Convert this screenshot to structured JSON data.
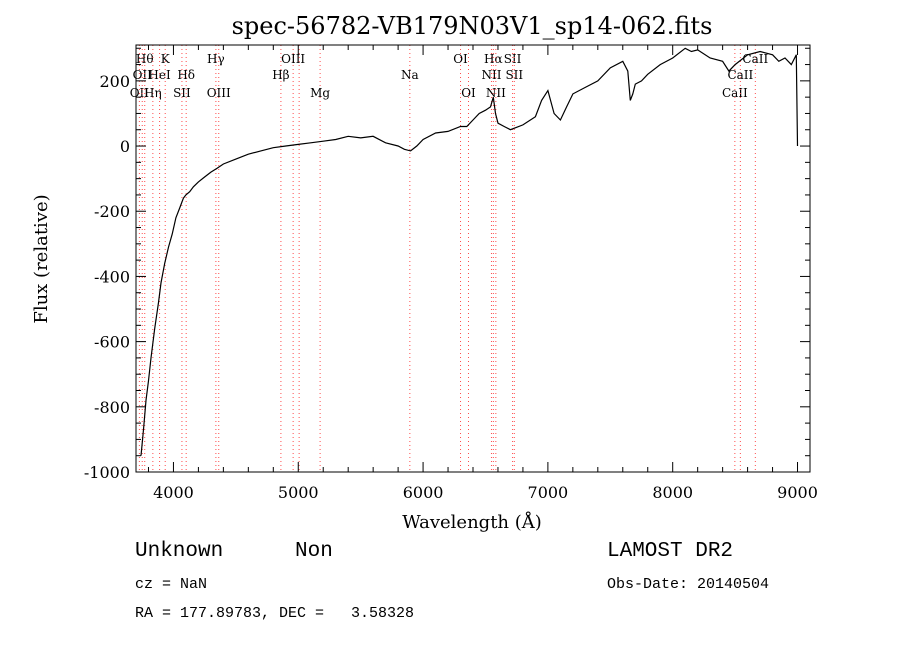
{
  "chart_data": {
    "type": "line",
    "title": "spec-56782-VB179N03V1_sp14-062.fits",
    "xlabel": "Wavelength (Å)",
    "ylabel": "Flux (relative)",
    "xlim": [
      3700,
      9100
    ],
    "ylim": [
      -1000,
      310
    ],
    "x_ticks": [
      4000,
      5000,
      6000,
      7000,
      8000,
      9000
    ],
    "y_ticks": [
      -1000,
      -800,
      -600,
      -400,
      -200,
      0,
      200
    ],
    "grid": false,
    "colors": {
      "line": "#000000",
      "marker_lines": "#ff4d4d",
      "axes": "#000000"
    },
    "series": [
      {
        "x": [
          3740,
          3760,
          3780,
          3800,
          3820,
          3850,
          3880,
          3900,
          3930,
          3960,
          3990,
          4020,
          4050,
          4080,
          4100,
          4130,
          4160,
          4200,
          4250,
          4300,
          4350,
          4400,
          4500,
          4600,
          4700,
          4800,
          4900,
          5000,
          5100,
          5200,
          5300,
          5400,
          5500,
          5600,
          5700,
          5800,
          5850,
          5900,
          5950,
          6000,
          6100,
          6200,
          6300,
          6350,
          6400,
          6450,
          6500,
          6540,
          6563,
          6580,
          6600,
          6650,
          6700,
          6800,
          6900,
          6950,
          7000,
          7050,
          7100,
          7150,
          7200,
          7300,
          7400,
          7500,
          7600,
          7640,
          7660,
          7680,
          7700,
          7750,
          7800,
          7900,
          8000,
          8100,
          8150,
          8200,
          8300,
          8400,
          8450,
          8500,
          8600,
          8700,
          8800,
          8850,
          8900,
          8950,
          8990,
          9000
        ],
        "y": [
          -950,
          -870,
          -780,
          -720,
          -650,
          -560,
          -480,
          -420,
          -360,
          -310,
          -270,
          -220,
          -190,
          -160,
          -150,
          -140,
          -125,
          -110,
          -95,
          -80,
          -68,
          -55,
          -40,
          -25,
          -15,
          -5,
          0,
          5,
          10,
          15,
          20,
          30,
          25,
          30,
          10,
          0,
          -10,
          -15,
          0,
          20,
          40,
          45,
          60,
          60,
          80,
          100,
          110,
          120,
          150,
          100,
          70,
          60,
          50,
          65,
          90,
          140,
          170,
          100,
          80,
          120,
          160,
          180,
          200,
          240,
          260,
          230,
          140,
          160,
          190,
          200,
          220,
          250,
          270,
          300,
          290,
          295,
          270,
          260,
          230,
          250,
          280,
          290,
          280,
          260,
          270,
          250,
          280,
          0
        ]
      }
    ],
    "line_markers": [
      {
        "wavelength": 3727,
        "label": "OII",
        "row": 2
      },
      {
        "wavelength": 3750,
        "label": "OII",
        "row": 1
      },
      {
        "wavelength": 3770,
        "label": "Hθ",
        "row": 0
      },
      {
        "wavelength": 3835,
        "label": "Hη",
        "row": 2
      },
      {
        "wavelength": 3889,
        "label": "HeI",
        "row": 1
      },
      {
        "wavelength": 3934,
        "label": "K",
        "row": 0
      },
      {
        "wavelength": 4068,
        "label": "SII",
        "row": 2
      },
      {
        "wavelength": 4102,
        "label": "Hδ",
        "row": 1
      },
      {
        "wavelength": 4340,
        "label": "Hγ",
        "row": 0
      },
      {
        "wavelength": 4363,
        "label": "OIII",
        "row": 2
      },
      {
        "wavelength": 4861,
        "label": "Hβ",
        "row": 1
      },
      {
        "wavelength": 4959,
        "label": "OIII",
        "row": 0
      },
      {
        "wavelength": 5007,
        "label": "",
        "row": 0
      },
      {
        "wavelength": 5175,
        "label": "Mg",
        "row": 2
      },
      {
        "wavelength": 5894,
        "label": "Na",
        "row": 1
      },
      {
        "wavelength": 6300,
        "label": "OI",
        "row": 0
      },
      {
        "wavelength": 6364,
        "label": "OI",
        "row": 2
      },
      {
        "wavelength": 6548,
        "label": "NII",
        "row": 1
      },
      {
        "wavelength": 6563,
        "label": "Hα",
        "row": 0
      },
      {
        "wavelength": 6583,
        "label": "NII",
        "row": 2
      },
      {
        "wavelength": 6717,
        "label": "SII",
        "row": 0
      },
      {
        "wavelength": 6731,
        "label": "SII",
        "row": 1
      },
      {
        "wavelength": 8498,
        "label": "CaII",
        "row": 2
      },
      {
        "wavelength": 8542,
        "label": "CaII",
        "row": 1
      },
      {
        "wavelength": 8662,
        "label": "CaII",
        "row": 0
      }
    ]
  },
  "info": {
    "class": "Unknown",
    "subclass": "Non",
    "survey": "LAMOST DR2",
    "cz": "cz = NaN",
    "obs_date": "Obs-Date: 20140504",
    "coords": "RA = 177.89783, DEC =   3.58328"
  }
}
